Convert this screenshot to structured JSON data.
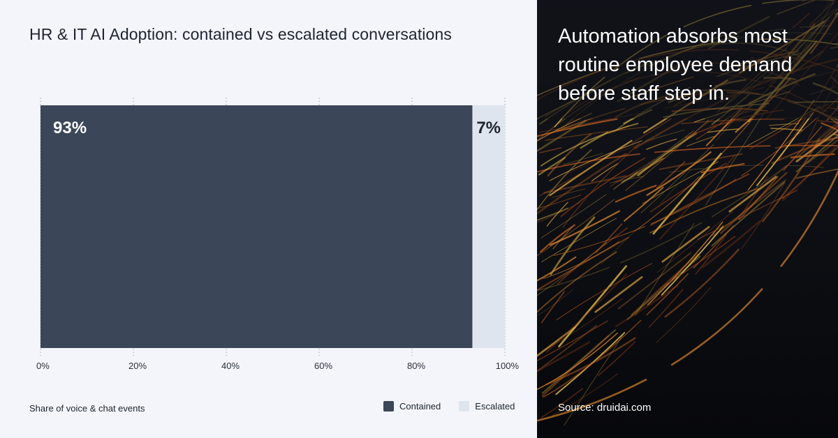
{
  "chart_data": {
    "type": "bar",
    "orientation": "horizontal",
    "stacked": true,
    "title": "HR & IT AI Adoption: contained vs escalated conversations",
    "subtitle": "",
    "xlabel": "Share of voice & chat events",
    "ylabel": "",
    "x_ticks": [
      "0%",
      "20%",
      "40%",
      "60%",
      "80%",
      "100%"
    ],
    "xlim": [
      0,
      100
    ],
    "grid": "vertical dotted",
    "legend_position": "bottom-right",
    "series": [
      {
        "name": "Contained",
        "value": 93,
        "label": "93%",
        "color": "#3b4659",
        "label_color": "#ffffff"
      },
      {
        "name": "Escalated",
        "value": 7,
        "label": "7%",
        "color": "#dfe5ee",
        "label_color": "#1f2430"
      }
    ]
  },
  "panel": {
    "headline": "Automation absorbs most routine employee demand before staff step in.",
    "source": "Source: druidai.com"
  }
}
